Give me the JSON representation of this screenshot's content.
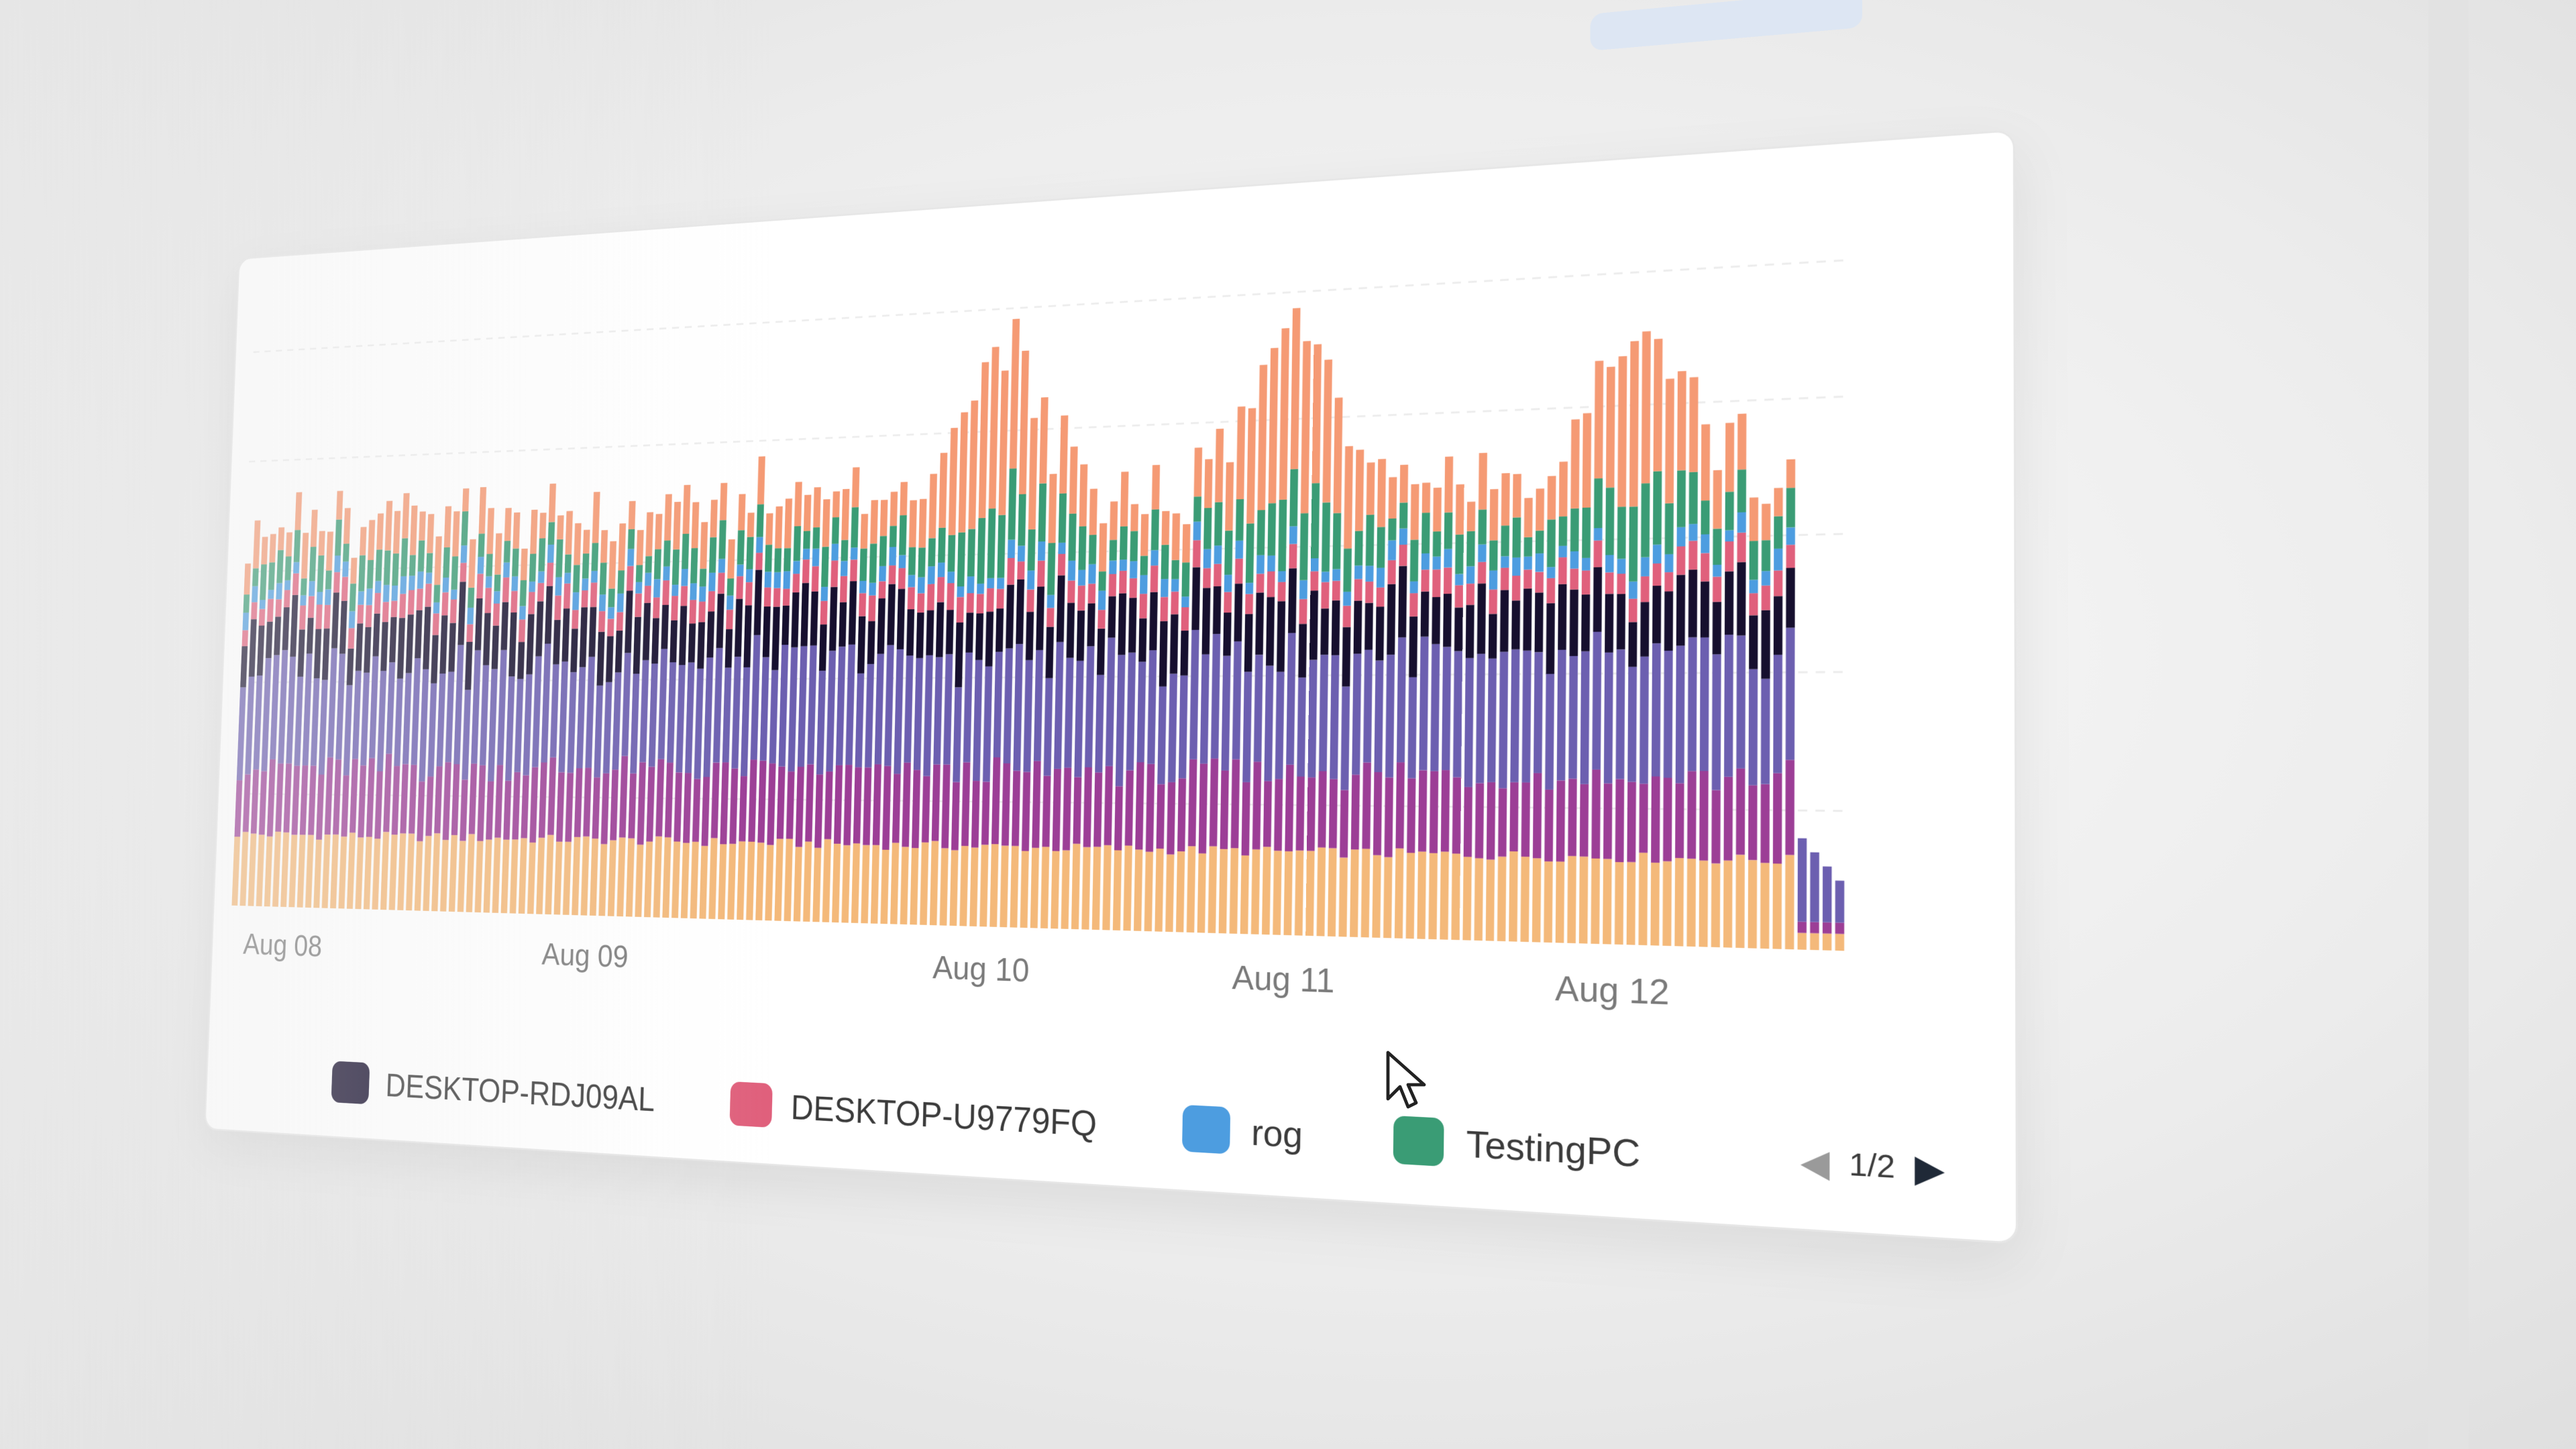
{
  "chart_data": {
    "type": "bar",
    "stacked": true,
    "x_ticks": [
      "Aug 08",
      "Aug 09",
      "Aug 10",
      "Aug 11",
      "Aug 12"
    ],
    "legend_placement": "bottom",
    "legend": {
      "page": "1/2",
      "visible": [
        "DESKTOP-RDJ09AL",
        "DESKTOP-U9779FQ",
        "rog",
        "TestingPC"
      ]
    },
    "series": [
      {
        "color": "#f4b97a",
        "base": 32,
        "var": 4
      },
      {
        "color": "#9c3e96",
        "base": 30,
        "var": 10
      },
      {
        "color": "#6c5fb0",
        "base": 45,
        "var": 14
      },
      {
        "name": "DESKTOP-RDJ09AL",
        "color": "#160f2e",
        "base": 22,
        "var": 12
      },
      {
        "name": "DESKTOP-U9779FQ",
        "color": "#e0607c",
        "base": 9,
        "var": 4
      },
      {
        "name": "rog",
        "color": "#4d9de0",
        "base": 6,
        "var": 4
      },
      {
        "name": "TestingPC",
        "color": "#3a9c75",
        "base": 12,
        "var": 10
      },
      {
        "color": "#f59a74",
        "base": 16,
        "var": 12
      }
    ]
  },
  "legend_items": [
    {
      "label": "DESKTOP-RDJ09AL",
      "color": "#160f2e"
    },
    {
      "label": "DESKTOP-U9779FQ",
      "color": "#e0607c"
    },
    {
      "label": "rog",
      "color": "#4d9de0"
    },
    {
      "label": "TestingPC",
      "color": "#3a9c75"
    }
  ],
  "icons": {
    "prev": "chevron-left-icon",
    "next": "chevron-right-icon",
    "cursor": "mouse-pointer-icon"
  }
}
